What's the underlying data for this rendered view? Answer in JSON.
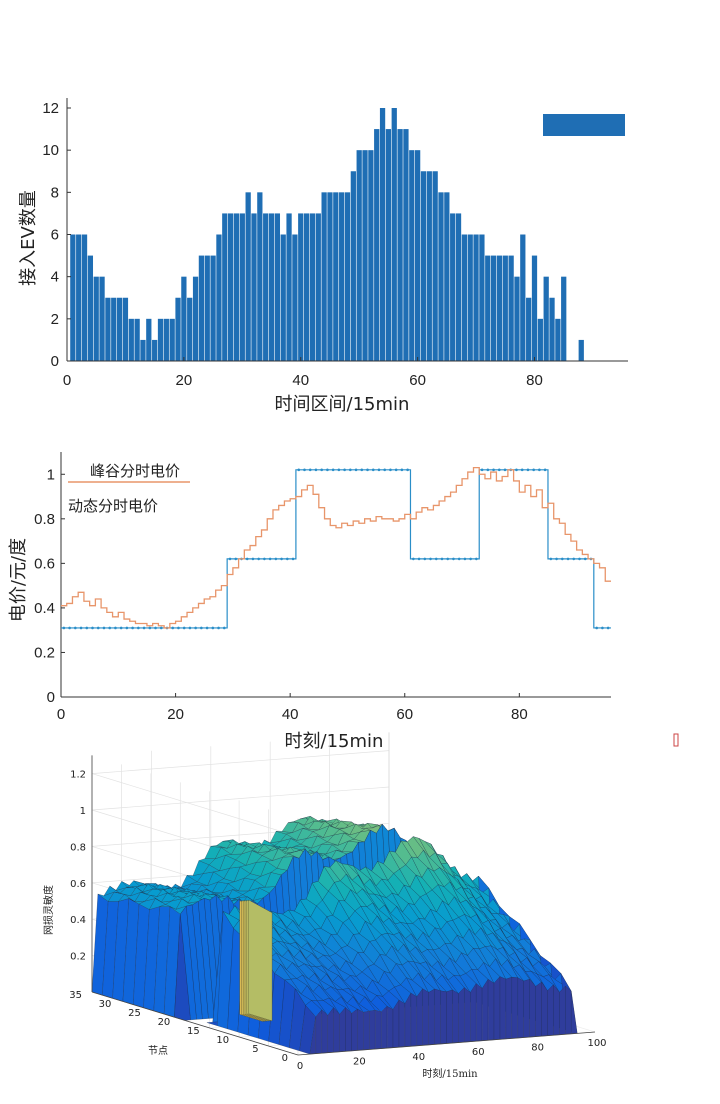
{
  "chart_data": [
    {
      "type": "bar",
      "xlabel": "时间区间/15min",
      "ylabel": "接入EV数量",
      "xlim": [
        0,
        96
      ],
      "ylim": [
        0,
        12
      ],
      "xticks": [
        0,
        20,
        40,
        60,
        80
      ],
      "yticks": [
        0,
        2,
        4,
        6,
        8,
        10,
        12
      ],
      "legend": {
        "position": "top-right",
        "label": ""
      },
      "color": "#1f6eb4",
      "x": [
        1,
        2,
        3,
        4,
        5,
        6,
        7,
        8,
        9,
        10,
        11,
        12,
        13,
        14,
        15,
        16,
        17,
        18,
        19,
        20,
        21,
        22,
        23,
        24,
        25,
        26,
        27,
        28,
        29,
        30,
        31,
        32,
        33,
        34,
        35,
        36,
        37,
        38,
        39,
        40,
        41,
        42,
        43,
        44,
        45,
        46,
        47,
        48,
        49,
        50,
        51,
        52,
        53,
        54,
        55,
        56,
        57,
        58,
        59,
        60,
        61,
        62,
        63,
        64,
        65,
        66,
        67,
        68,
        69,
        70,
        71,
        72,
        73,
        74,
        75,
        76,
        77,
        78,
        79,
        80,
        81,
        82,
        83,
        84,
        85,
        86,
        87,
        88,
        89,
        90,
        91,
        92,
        93,
        94,
        95,
        96
      ],
      "values": [
        6,
        6,
        6,
        5,
        4,
        4,
        3,
        3,
        3,
        3,
        2,
        2,
        1,
        2,
        1,
        2,
        2,
        2,
        3,
        4,
        3,
        4,
        5,
        5,
        5,
        6,
        7,
        7,
        7,
        7,
        8,
        7,
        8,
        7,
        7,
        7,
        6,
        7,
        6,
        7,
        7,
        7,
        7,
        8,
        8,
        8,
        8,
        8,
        9,
        10,
        10,
        10,
        11,
        12,
        11,
        12,
        11,
        11,
        10,
        10,
        9,
        9,
        9,
        8,
        8,
        7,
        7,
        6,
        6,
        6,
        6,
        5,
        5,
        5,
        5,
        5,
        4,
        6,
        3,
        5,
        2,
        4,
        3,
        2,
        4,
        0,
        0,
        1,
        0,
        0,
        0,
        0,
        0,
        0,
        0,
        0
      ]
    },
    {
      "type": "line",
      "xlabel": "时刻/15min",
      "ylabel": "电价/元/度",
      "xlim": [
        0,
        96
      ],
      "ylim": [
        0,
        1.1
      ],
      "xticks": [
        0,
        20,
        40,
        60,
        80
      ],
      "yticks": [
        0,
        0.2,
        0.4,
        0.6,
        0.8,
        1
      ],
      "ytick_labels": [
        "0",
        "0.2",
        "0.4",
        "0.6",
        "0.8",
        "1"
      ],
      "legend": {
        "position": "top-left"
      },
      "series": [
        {
          "name": "峰谷分时电价",
          "color": "#2a8ec8",
          "marker": "dot",
          "steps": [
            [
              0,
              29,
              0.31
            ],
            [
              29,
              41,
              0.62
            ],
            [
              41,
              61,
              1.02
            ],
            [
              61,
              73,
              0.62
            ],
            [
              73,
              85,
              1.02
            ],
            [
              85,
              93,
              0.62
            ],
            [
              93,
              96,
              0.31
            ]
          ]
        },
        {
          "name": "动态分时电价",
          "color": "#e8956a",
          "values": [
            0.41,
            0.42,
            0.45,
            0.47,
            0.43,
            0.41,
            0.44,
            0.4,
            0.38,
            0.36,
            0.38,
            0.35,
            0.34,
            0.33,
            0.33,
            0.32,
            0.33,
            0.32,
            0.31,
            0.33,
            0.34,
            0.36,
            0.38,
            0.4,
            0.42,
            0.44,
            0.45,
            0.48,
            0.5,
            0.55,
            0.58,
            0.62,
            0.66,
            0.68,
            0.72,
            0.75,
            0.8,
            0.84,
            0.86,
            0.88,
            0.89,
            0.9,
            0.93,
            0.95,
            0.91,
            0.85,
            0.8,
            0.77,
            0.76,
            0.78,
            0.77,
            0.79,
            0.78,
            0.8,
            0.79,
            0.81,
            0.8,
            0.8,
            0.79,
            0.8,
            0.82,
            0.8,
            0.83,
            0.85,
            0.84,
            0.86,
            0.88,
            0.9,
            0.92,
            0.95,
            0.98,
            1.01,
            1.03,
            1.0,
            0.98,
            1.01,
            0.97,
            0.99,
            1.02,
            0.97,
            0.92,
            0.95,
            0.9,
            0.93,
            0.85,
            0.87,
            0.8,
            0.78,
            0.73,
            0.7,
            0.66,
            0.64,
            0.62,
            0.6,
            0.58,
            0.52
          ]
        }
      ]
    },
    {
      "type": "surface3d",
      "xlabel": "时刻/15min",
      "ylabel": "节点",
      "zlabel": "网损灵敏度",
      "xlim": [
        0,
        100
      ],
      "ylim": [
        0,
        35
      ],
      "zlim": [
        0,
        1.2
      ],
      "xticks": [
        20,
        40,
        60,
        80,
        100
      ],
      "yticks": [
        0,
        5,
        10,
        15,
        20,
        25,
        30,
        35
      ],
      "zticks": [
        0.2,
        0.4,
        0.6,
        0.8,
        1,
        1.2
      ],
      "colormap": "parula",
      "peak_value": 1.02,
      "gap_nodes": [
        16,
        20
      ]
    }
  ]
}
